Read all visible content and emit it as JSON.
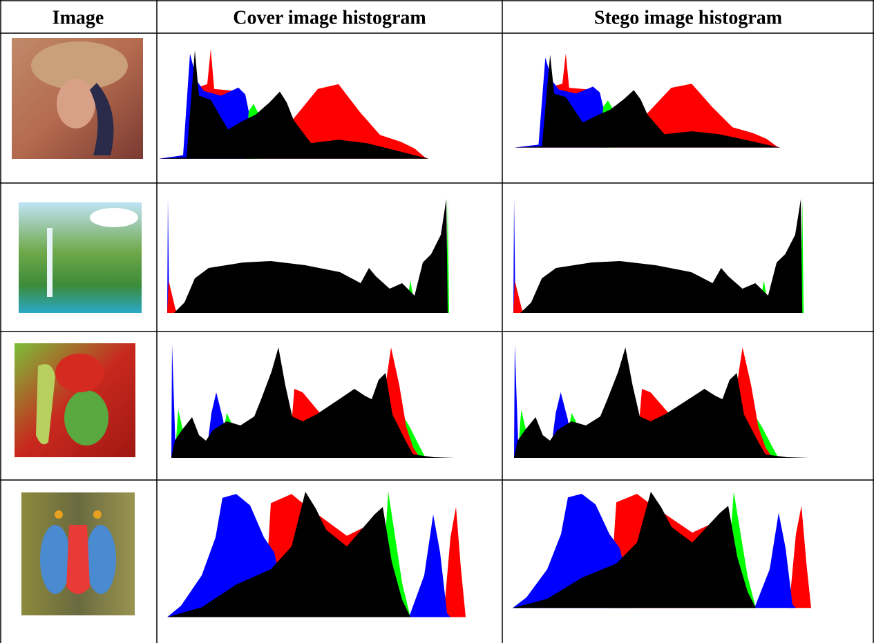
{
  "table": {
    "headers": [
      "Image",
      "Cover image histogram",
      "Stego image histogram"
    ]
  }
}
